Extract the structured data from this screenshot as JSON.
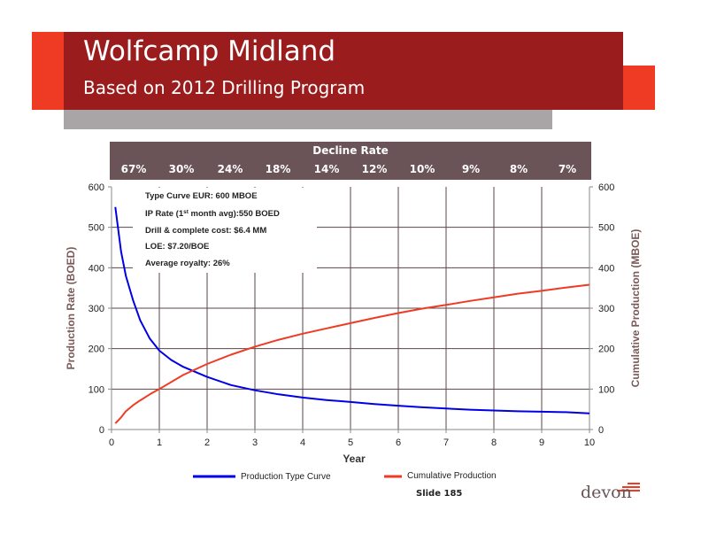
{
  "slide": {
    "title": "Wolfcamp Midland",
    "subtitle": "Based on 2012 Drilling Program",
    "footer": "Slide 185",
    "logo_text": "devon"
  },
  "colors": {
    "title_band": "#9b1c1c",
    "accent": "#ef3b24",
    "gray_band": "#a9a5a6",
    "decline_box": "#6a5458",
    "axis_text": "#7a5a58",
    "production_series": "#0000e6",
    "cumulative_series": "#ef3b24"
  },
  "decline": {
    "title": "Decline Rate",
    "rates": [
      "67%",
      "30%",
      "24%",
      "18%",
      "14%",
      "12%",
      "10%",
      "9%",
      "8%",
      "7%"
    ]
  },
  "annotation": {
    "eur": "Type Curve EUR: 600 MBOE",
    "ip_prefix": "IP Rate (1",
    "ip_sup": "st",
    "ip_suffix": " month avg):550 BOED",
    "cost": "Drill & complete cost: $6.4 MM",
    "loe": "LOE: $7.20/BOE",
    "royalty": "Average royalty: 26%"
  },
  "chart_data": {
    "type": "line",
    "xlabel": "Year",
    "ylabel": "Production Rate (BOED)",
    "ylabel_right": "Cumulative Production (MBOE)",
    "xlim": [
      0,
      10
    ],
    "ylim": [
      0,
      600
    ],
    "ylim_right": [
      0,
      600
    ],
    "x_ticks": [
      "0",
      "1",
      "2",
      "3",
      "4",
      "5",
      "6",
      "7",
      "8",
      "9",
      "10"
    ],
    "y_ticks": [
      "0",
      "100",
      "200",
      "300",
      "400",
      "500",
      "600"
    ],
    "y_ticks_right": [
      "0",
      "100",
      "200",
      "300",
      "400",
      "500",
      "600"
    ],
    "grid": true,
    "legend_position": "bottom",
    "series": [
      {
        "name": "Production Type Curve",
        "axis": "left",
        "x": [
          0.08,
          0.2,
          0.3,
          0.45,
          0.6,
          0.8,
          1,
          1.25,
          1.5,
          2,
          2.5,
          3,
          3.5,
          4,
          4.5,
          5,
          5.5,
          6,
          6.5,
          7,
          7.5,
          8,
          8.5,
          9,
          9.5,
          10
        ],
        "y": [
          550,
          440,
          380,
          320,
          270,
          225,
          195,
          172,
          155,
          130,
          110,
          97,
          87,
          79,
          73,
          68,
          63,
          59,
          55,
          52,
          49,
          47,
          45,
          44,
          43,
          40
        ]
      },
      {
        "name": "Cumulative Production",
        "axis": "right",
        "x": [
          0.08,
          0.2,
          0.3,
          0.45,
          0.6,
          0.8,
          1,
          1.5,
          2,
          2.5,
          3,
          3.5,
          4,
          4.5,
          5,
          5.5,
          6,
          6.5,
          7,
          7.5,
          8,
          8.5,
          9,
          9.5,
          10
        ],
        "y": [
          15,
          30,
          45,
          60,
          72,
          87,
          100,
          135,
          162,
          185,
          205,
          222,
          237,
          250,
          263,
          276,
          288,
          299,
          308,
          318,
          327,
          336,
          343,
          351,
          358
        ]
      }
    ]
  }
}
